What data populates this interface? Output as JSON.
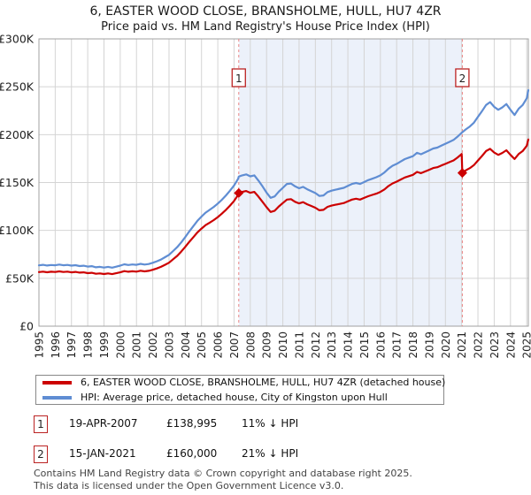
{
  "page": {
    "title": "6, EASTER WOOD CLOSE, BRANSHOLME, HULL, HU7 4ZR",
    "subtitle": "Price paid vs. HM Land Registry's House Price Index (HPI)"
  },
  "chart_data": {
    "type": "line",
    "title": "6, EASTER WOOD CLOSE, BRANSHOLME, HULL, HU7 4ZR",
    "subtitle": "Price paid vs. HM Land Registry's House Price Index (HPI)",
    "xlabel": "",
    "ylabel": "",
    "values_unit": "GBP thousands",
    "xlim": [
      1995,
      2025.1
    ],
    "ylim": [
      0,
      300
    ],
    "grid": true,
    "legend_position": "below",
    "x_ticks": [
      1995,
      1996,
      1997,
      1998,
      1999,
      2000,
      2001,
      2002,
      2003,
      2004,
      2005,
      2006,
      2007,
      2008,
      2009,
      2010,
      2011,
      2012,
      2013,
      2014,
      2015,
      2016,
      2017,
      2018,
      2019,
      2020,
      2021,
      2022,
      2023,
      2024,
      2025
    ],
    "y_ticks": [
      {
        "value": 0,
        "label": "£0"
      },
      {
        "value": 50,
        "label": "£50K"
      },
      {
        "value": 100,
        "label": "£100K"
      },
      {
        "value": 150,
        "label": "£150K"
      },
      {
        "value": 200,
        "label": "£200K"
      },
      {
        "value": 250,
        "label": "£250K"
      },
      {
        "value": 300,
        "label": "£300K"
      }
    ],
    "shaded_region": {
      "from_x": 2007.29,
      "to_x": 2021.04
    },
    "sale_markers": [
      {
        "label": "1",
        "x": 2007.29,
        "value": 138.995,
        "date": "19-APR-2007",
        "price": "£138,995",
        "vs_hpi": "11% ↓ HPI"
      },
      {
        "label": "2",
        "x": 2021.04,
        "value": 160.0,
        "date": "15-JAN-2021",
        "price": "£160,000",
        "vs_hpi": "21% ↓ HPI"
      }
    ],
    "series": [
      {
        "id": "property",
        "name": "6, EASTER WOOD CLOSE, BRANSHOLME, HULL, HU7 4ZR (detached house)",
        "color": "#cc0000",
        "points": [
          [
            1995.0,
            56.5
          ],
          [
            1995.25,
            57.0
          ],
          [
            1995.5,
            56.3
          ],
          [
            1995.75,
            56.9
          ],
          [
            1996.0,
            56.6
          ],
          [
            1996.25,
            57.2
          ],
          [
            1996.5,
            56.6
          ],
          [
            1996.75,
            57.0
          ],
          [
            1997.0,
            56.2
          ],
          [
            1997.25,
            56.7
          ],
          [
            1997.5,
            55.9
          ],
          [
            1997.75,
            56.2
          ],
          [
            1998.0,
            55.4
          ],
          [
            1998.25,
            55.8
          ],
          [
            1998.5,
            54.7
          ],
          [
            1998.75,
            55.1
          ],
          [
            1999.0,
            54.5
          ],
          [
            1999.25,
            55.1
          ],
          [
            1999.5,
            54.4
          ],
          [
            1999.75,
            55.3
          ],
          [
            2000.0,
            56.2
          ],
          [
            2000.25,
            57.5
          ],
          [
            2000.5,
            56.9
          ],
          [
            2000.75,
            57.3
          ],
          [
            2001.0,
            57.0
          ],
          [
            2001.25,
            57.9
          ],
          [
            2001.5,
            57.2
          ],
          [
            2001.75,
            57.8
          ],
          [
            2002.0,
            58.9
          ],
          [
            2002.25,
            60.3
          ],
          [
            2002.5,
            61.9
          ],
          [
            2002.75,
            64.1
          ],
          [
            2003.0,
            66.3
          ],
          [
            2003.25,
            69.9
          ],
          [
            2003.5,
            73.4
          ],
          [
            2003.75,
            77.9
          ],
          [
            2004.0,
            82.8
          ],
          [
            2004.25,
            88.1
          ],
          [
            2004.5,
            93.0
          ],
          [
            2004.75,
            97.9
          ],
          [
            2005.0,
            101.9
          ],
          [
            2005.25,
            105.5
          ],
          [
            2005.5,
            108.1
          ],
          [
            2005.75,
            110.8
          ],
          [
            2006.0,
            113.9
          ],
          [
            2006.25,
            117.5
          ],
          [
            2006.5,
            121.5
          ],
          [
            2006.75,
            125.9
          ],
          [
            2007.0,
            130.8
          ],
          [
            2007.25,
            137.1
          ],
          [
            2007.29,
            139.0
          ],
          [
            2007.5,
            140.2
          ],
          [
            2007.75,
            141.1
          ],
          [
            2008.0,
            139.3
          ],
          [
            2008.25,
            140.2
          ],
          [
            2008.5,
            135.3
          ],
          [
            2008.75,
            129.9
          ],
          [
            2009.0,
            124.2
          ],
          [
            2009.25,
            119.3
          ],
          [
            2009.5,
            120.6
          ],
          [
            2009.75,
            125.0
          ],
          [
            2010.0,
            128.6
          ],
          [
            2010.25,
            132.2
          ],
          [
            2010.5,
            132.6
          ],
          [
            2010.75,
            129.9
          ],
          [
            2011.0,
            128.2
          ],
          [
            2011.25,
            129.5
          ],
          [
            2011.5,
            127.3
          ],
          [
            2011.75,
            125.5
          ],
          [
            2012.0,
            123.7
          ],
          [
            2012.25,
            121.0
          ],
          [
            2012.5,
            121.5
          ],
          [
            2012.75,
            124.6
          ],
          [
            2013.0,
            125.9
          ],
          [
            2013.25,
            126.8
          ],
          [
            2013.5,
            127.7
          ],
          [
            2013.75,
            128.6
          ],
          [
            2014.0,
            130.4
          ],
          [
            2014.25,
            132.2
          ],
          [
            2014.5,
            133.1
          ],
          [
            2014.75,
            132.2
          ],
          [
            2015.0,
            133.9
          ],
          [
            2015.25,
            135.7
          ],
          [
            2015.5,
            137.1
          ],
          [
            2015.75,
            138.4
          ],
          [
            2016.0,
            140.2
          ],
          [
            2016.25,
            142.8
          ],
          [
            2016.5,
            146.4
          ],
          [
            2016.75,
            149.1
          ],
          [
            2017.0,
            150.9
          ],
          [
            2017.25,
            153.1
          ],
          [
            2017.5,
            155.3
          ],
          [
            2017.75,
            156.6
          ],
          [
            2018.0,
            158.0
          ],
          [
            2018.25,
            161.1
          ],
          [
            2018.5,
            159.8
          ],
          [
            2018.75,
            161.5
          ],
          [
            2019.0,
            163.3
          ],
          [
            2019.25,
            165.1
          ],
          [
            2019.5,
            166.0
          ],
          [
            2019.75,
            167.8
          ],
          [
            2020.0,
            169.5
          ],
          [
            2020.25,
            171.3
          ],
          [
            2020.5,
            173.1
          ],
          [
            2020.75,
            176.2
          ],
          [
            2021.0,
            179.8
          ],
          [
            2021.04,
            160.0
          ],
          [
            2021.25,
            162.7
          ],
          [
            2021.5,
            165.0
          ],
          [
            2021.75,
            168.2
          ],
          [
            2022.0,
            173.0
          ],
          [
            2022.25,
            177.7
          ],
          [
            2022.5,
            182.9
          ],
          [
            2022.75,
            185.2
          ],
          [
            2023.0,
            181.3
          ],
          [
            2023.25,
            178.9
          ],
          [
            2023.5,
            180.9
          ],
          [
            2023.75,
            183.7
          ],
          [
            2024.0,
            178.9
          ],
          [
            2024.25,
            174.6
          ],
          [
            2024.5,
            179.7
          ],
          [
            2024.75,
            182.9
          ],
          [
            2025.0,
            188.4
          ],
          [
            2025.1,
            195.0
          ]
        ]
      },
      {
        "id": "hpi",
        "name": "HPI: Average price, detached house, City of Kingston upon Hull",
        "color": "#5f8dd3",
        "points": [
          [
            1995.0,
            63.5
          ],
          [
            1995.25,
            64.1
          ],
          [
            1995.5,
            63.3
          ],
          [
            1995.75,
            63.9
          ],
          [
            1996.0,
            63.6
          ],
          [
            1996.25,
            64.3
          ],
          [
            1996.5,
            63.6
          ],
          [
            1996.75,
            64.0
          ],
          [
            1997.0,
            63.2
          ],
          [
            1997.25,
            63.7
          ],
          [
            1997.5,
            62.8
          ],
          [
            1997.75,
            63.1
          ],
          [
            1998.0,
            62.2
          ],
          [
            1998.25,
            62.7
          ],
          [
            1998.5,
            61.5
          ],
          [
            1998.75,
            61.9
          ],
          [
            1999.0,
            61.2
          ],
          [
            1999.25,
            61.9
          ],
          [
            1999.5,
            61.1
          ],
          [
            1999.75,
            62.1
          ],
          [
            2000.0,
            63.2
          ],
          [
            2000.25,
            64.6
          ],
          [
            2000.5,
            63.9
          ],
          [
            2000.75,
            64.4
          ],
          [
            2001.0,
            64.1
          ],
          [
            2001.25,
            65.1
          ],
          [
            2001.5,
            64.3
          ],
          [
            2001.75,
            64.9
          ],
          [
            2002.0,
            66.2
          ],
          [
            2002.25,
            67.8
          ],
          [
            2002.5,
            69.5
          ],
          [
            2002.75,
            72.0
          ],
          [
            2003.0,
            74.5
          ],
          [
            2003.25,
            78.5
          ],
          [
            2003.5,
            82.5
          ],
          [
            2003.75,
            87.5
          ],
          [
            2004.0,
            93.0
          ],
          [
            2004.25,
            99.0
          ],
          [
            2004.5,
            104.5
          ],
          [
            2004.75,
            110.0
          ],
          [
            2005.0,
            114.5
          ],
          [
            2005.25,
            118.5
          ],
          [
            2005.5,
            121.5
          ],
          [
            2005.75,
            124.5
          ],
          [
            2006.0,
            128.0
          ],
          [
            2006.25,
            132.0
          ],
          [
            2006.5,
            136.5
          ],
          [
            2006.75,
            141.5
          ],
          [
            2007.0,
            147.0
          ],
          [
            2007.25,
            154.0
          ],
          [
            2007.29,
            156.2
          ],
          [
            2007.5,
            157.5
          ],
          [
            2007.75,
            158.5
          ],
          [
            2008.0,
            156.5
          ],
          [
            2008.25,
            157.5
          ],
          [
            2008.5,
            152.0
          ],
          [
            2008.75,
            146.0
          ],
          [
            2009.0,
            139.5
          ],
          [
            2009.25,
            134.0
          ],
          [
            2009.5,
            135.5
          ],
          [
            2009.75,
            140.5
          ],
          [
            2010.0,
            144.5
          ],
          [
            2010.25,
            148.5
          ],
          [
            2010.5,
            149.0
          ],
          [
            2010.75,
            146.0
          ],
          [
            2011.0,
            144.0
          ],
          [
            2011.25,
            145.5
          ],
          [
            2011.5,
            143.0
          ],
          [
            2011.75,
            141.0
          ],
          [
            2012.0,
            139.0
          ],
          [
            2012.25,
            136.0
          ],
          [
            2012.5,
            136.5
          ],
          [
            2012.75,
            140.0
          ],
          [
            2013.0,
            141.5
          ],
          [
            2013.25,
            142.5
          ],
          [
            2013.5,
            143.5
          ],
          [
            2013.75,
            144.5
          ],
          [
            2014.0,
            146.5
          ],
          [
            2014.25,
            148.5
          ],
          [
            2014.5,
            149.5
          ],
          [
            2014.75,
            148.5
          ],
          [
            2015.0,
            150.5
          ],
          [
            2015.25,
            152.5
          ],
          [
            2015.5,
            154.0
          ],
          [
            2015.75,
            155.5
          ],
          [
            2016.0,
            157.5
          ],
          [
            2016.25,
            160.5
          ],
          [
            2016.5,
            164.5
          ],
          [
            2016.75,
            167.5
          ],
          [
            2017.0,
            169.5
          ],
          [
            2017.25,
            172.0
          ],
          [
            2017.5,
            174.5
          ],
          [
            2017.75,
            176.0
          ],
          [
            2018.0,
            177.5
          ],
          [
            2018.25,
            181.0
          ],
          [
            2018.5,
            179.5
          ],
          [
            2018.75,
            181.5
          ],
          [
            2019.0,
            183.5
          ],
          [
            2019.25,
            185.5
          ],
          [
            2019.5,
            186.5
          ],
          [
            2019.75,
            188.5
          ],
          [
            2020.0,
            190.5
          ],
          [
            2020.25,
            192.5
          ],
          [
            2020.5,
            194.5
          ],
          [
            2020.75,
            198.0
          ],
          [
            2021.0,
            202.0
          ],
          [
            2021.25,
            205.5
          ],
          [
            2021.5,
            208.5
          ],
          [
            2021.75,
            212.5
          ],
          [
            2022.0,
            218.5
          ],
          [
            2022.25,
            224.5
          ],
          [
            2022.5,
            231.0
          ],
          [
            2022.75,
            234.0
          ],
          [
            2023.0,
            229.0
          ],
          [
            2023.25,
            226.0
          ],
          [
            2023.5,
            228.5
          ],
          [
            2023.75,
            232.0
          ],
          [
            2024.0,
            226.0
          ],
          [
            2024.25,
            220.5
          ],
          [
            2024.5,
            227.0
          ],
          [
            2024.75,
            231.0
          ],
          [
            2025.0,
            238.0
          ],
          [
            2025.1,
            246.5
          ]
        ]
      }
    ]
  },
  "legend": {
    "items": [
      {
        "label": "6, EASTER WOOD CLOSE, BRANSHOLME, HULL, HU7 4ZR (detached house)",
        "color": "#cc0000"
      },
      {
        "label": "HPI: Average price, detached house, City of Kingston upon Hull",
        "color": "#5f8dd3"
      }
    ]
  },
  "annotations": [
    {
      "number": "1",
      "date": "19-APR-2007",
      "price": "£138,995",
      "vs_hpi": "11% ↓ HPI"
    },
    {
      "number": "2",
      "date": "15-JAN-2021",
      "price": "£160,000",
      "vs_hpi": "21% ↓ HPI"
    }
  ],
  "footer": {
    "line1": "Contains HM Land Registry data © Crown copyright and database right 2025.",
    "line2": "This data is licensed under the Open Government Licence v3.0."
  },
  "colors": {
    "property_line": "#cc0000",
    "hpi_line": "#5f8dd3",
    "grid": "#d4d4d4",
    "axis_border": "#a0a0a0",
    "dashed_marker_line": "#ea8585",
    "shade": "#ecf1fa",
    "marker_box_border": "#bb2222",
    "tick_text": "#222222"
  }
}
